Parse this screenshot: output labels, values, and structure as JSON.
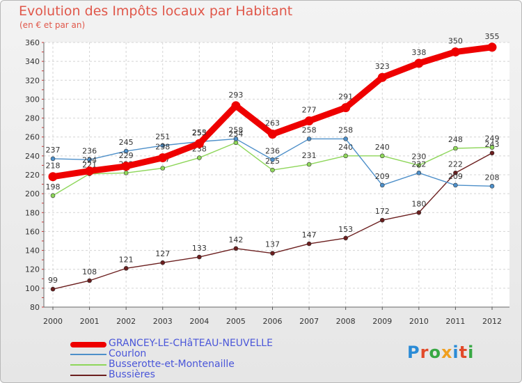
{
  "header": {
    "title": "Evolution des Impôts locaux par Habitant",
    "subtitle": "(en € et par an)"
  },
  "logo": {
    "text": "Proxiti",
    "colors": [
      "#2a8bd6",
      "#e24a2a",
      "#37a843",
      "#f0a020",
      "#2a8bd6",
      "#e24a2a",
      "#37a843"
    ]
  },
  "chart_data": {
    "type": "line",
    "x": [
      2000,
      2001,
      2002,
      2003,
      2004,
      2005,
      2006,
      2007,
      2008,
      2009,
      2010,
      2011,
      2012
    ],
    "ylim": [
      80,
      360
    ],
    "yticks": [
      80,
      100,
      120,
      140,
      160,
      180,
      200,
      220,
      240,
      260,
      280,
      300,
      320,
      340,
      360
    ],
    "grid": true,
    "legend_position": "bottom-left",
    "series": [
      {
        "name": "GRANCEY-LE-CHâTEAU-NEUVELLE",
        "color": "#ee0000",
        "values": [
          218,
          224,
          229,
          238,
          253,
          293,
          263,
          277,
          291,
          323,
          338,
          350,
          355
        ]
      },
      {
        "name": "Courlon",
        "color": "#4d8fc9",
        "values": [
          237,
          236,
          245,
          251,
          255,
          258,
          236,
          258,
          258,
          209,
          222,
          209,
          208
        ]
      },
      {
        "name": "Busserotte-et-Montenaille",
        "color": "#8ed65a",
        "values": [
          198,
          221,
          222,
          227,
          238,
          254,
          225,
          231,
          240,
          240,
          230,
          248,
          249
        ]
      },
      {
        "name": "Bussières",
        "color": "#6b1e1e",
        "values": [
          99,
          108,
          121,
          127,
          133,
          142,
          137,
          147,
          153,
          172,
          180,
          222,
          243
        ]
      }
    ]
  }
}
